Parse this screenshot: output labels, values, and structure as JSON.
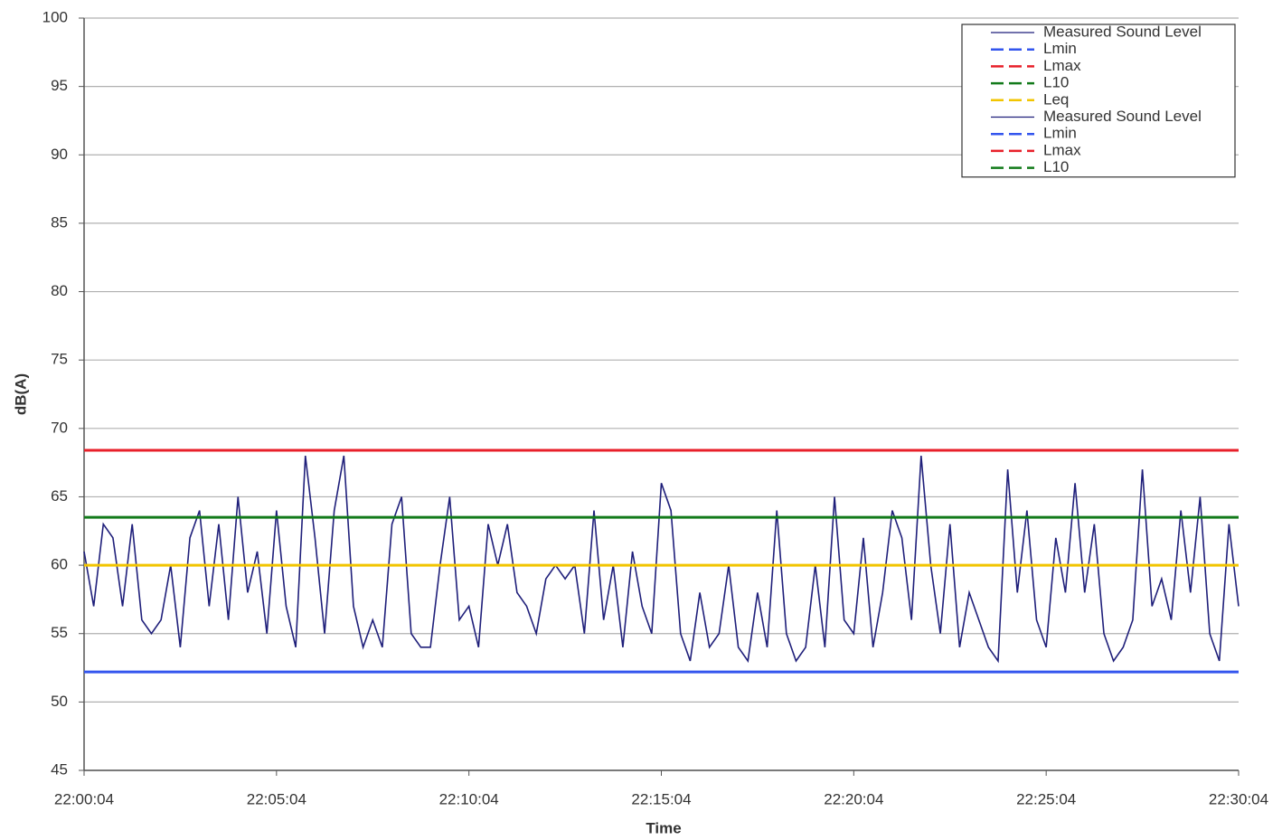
{
  "chart_data": {
    "type": "line",
    "x_label": "Time",
    "y_label": "dB(A)",
    "xlim": [
      0,
      1800
    ],
    "xticks": [
      {
        "value": 0,
        "label": "22:00:04"
      },
      {
        "value": 300,
        "label": "22:05:04"
      },
      {
        "value": 600,
        "label": "22:10:04"
      },
      {
        "value": 900,
        "label": "22:15:04"
      },
      {
        "value": 1200,
        "label": "22:20:04"
      },
      {
        "value": 1500,
        "label": "22:25:04"
      },
      {
        "value": 1800,
        "label": "22:30:04"
      }
    ],
    "ylim": [
      45,
      100
    ],
    "yticks": [
      45,
      50,
      55,
      60,
      65,
      70,
      75,
      80,
      85,
      90,
      95,
      100
    ],
    "grid": true,
    "legend": "upper right",
    "series": [
      {
        "name": "Measured Sound Level",
        "color": "#1f1f7a",
        "x": [
          0,
          15,
          30,
          45,
          60,
          75,
          90,
          105,
          120,
          135,
          150,
          165,
          180,
          195,
          210,
          225,
          240,
          255,
          270,
          285,
          300,
          315,
          330,
          345,
          360,
          375,
          390,
          405,
          420,
          435,
          450,
          465,
          480,
          495,
          510,
          525,
          540,
          555,
          570,
          585,
          600,
          615,
          630,
          645,
          660,
          675,
          690,
          705,
          720,
          735,
          750,
          765,
          780,
          795,
          810,
          825,
          840,
          855,
          870,
          885,
          900,
          915,
          930,
          945,
          960,
          975,
          990,
          1005,
          1020,
          1035,
          1050,
          1065,
          1080,
          1095,
          1110,
          1125,
          1140,
          1155,
          1170,
          1185,
          1200,
          1215,
          1230,
          1245,
          1260,
          1275,
          1290,
          1305,
          1320,
          1335,
          1350,
          1365,
          1380,
          1395,
          1410,
          1425,
          1440,
          1455,
          1470,
          1485,
          1500,
          1515,
          1530,
          1545,
          1560,
          1575,
          1590,
          1605,
          1620,
          1635,
          1650,
          1665,
          1680,
          1695,
          1710,
          1725,
          1740,
          1755,
          1770,
          1785,
          1800
        ],
        "values": [
          61,
          57,
          63,
          62,
          57,
          63,
          56,
          55,
          56,
          60,
          54,
          62,
          64,
          57,
          63,
          56,
          65,
          58,
          61,
          55,
          64,
          57,
          54,
          68,
          62,
          55,
          64,
          68,
          57,
          54,
          56,
          54,
          63,
          65,
          55,
          54,
          54,
          60,
          65,
          56,
          57,
          54,
          63,
          60,
          63,
          58,
          57,
          55,
          59,
          60,
          59,
          60,
          55,
          64,
          56,
          60,
          54,
          61,
          57,
          55,
          66,
          64,
          55,
          53,
          58,
          54,
          55,
          60,
          54,
          53,
          58,
          54,
          64,
          55,
          53,
          54,
          60,
          54,
          65,
          56,
          55,
          62,
          54,
          58,
          64,
          62,
          56,
          68,
          60,
          55,
          63,
          54,
          58,
          56,
          54,
          53,
          67,
          58,
          64,
          56,
          54,
          62,
          58,
          66,
          58,
          63,
          55,
          53,
          54,
          56,
          67,
          57,
          59,
          56,
          64,
          58,
          65,
          55,
          53,
          63,
          57
        ]
      },
      {
        "name": "Lmin",
        "color": "#3355ee",
        "x": [
          0,
          1800
        ],
        "values": [
          52.2,
          52.2
        ]
      },
      {
        "name": "Lmax",
        "color": "#e8202a",
        "x": [
          0,
          1800
        ],
        "values": [
          68.4,
          68.4
        ]
      },
      {
        "name": "L10",
        "color": "#127a1a",
        "x": [
          0,
          1800
        ],
        "values": [
          63.5,
          63.5
        ]
      },
      {
        "name": "Leq",
        "color": "#f2c500",
        "x": [
          0,
          1800
        ],
        "values": [
          60,
          60
        ]
      }
    ],
    "legend_extra": [
      {
        "name": "Measured Sound Level",
        "color": "#1f1f7a"
      },
      {
        "name": "Lmin",
        "color": "#3355ee"
      },
      {
        "name": "Lmax",
        "color": "#e8202a"
      },
      {
        "name": "L10",
        "color": "#127a1a"
      }
    ]
  }
}
